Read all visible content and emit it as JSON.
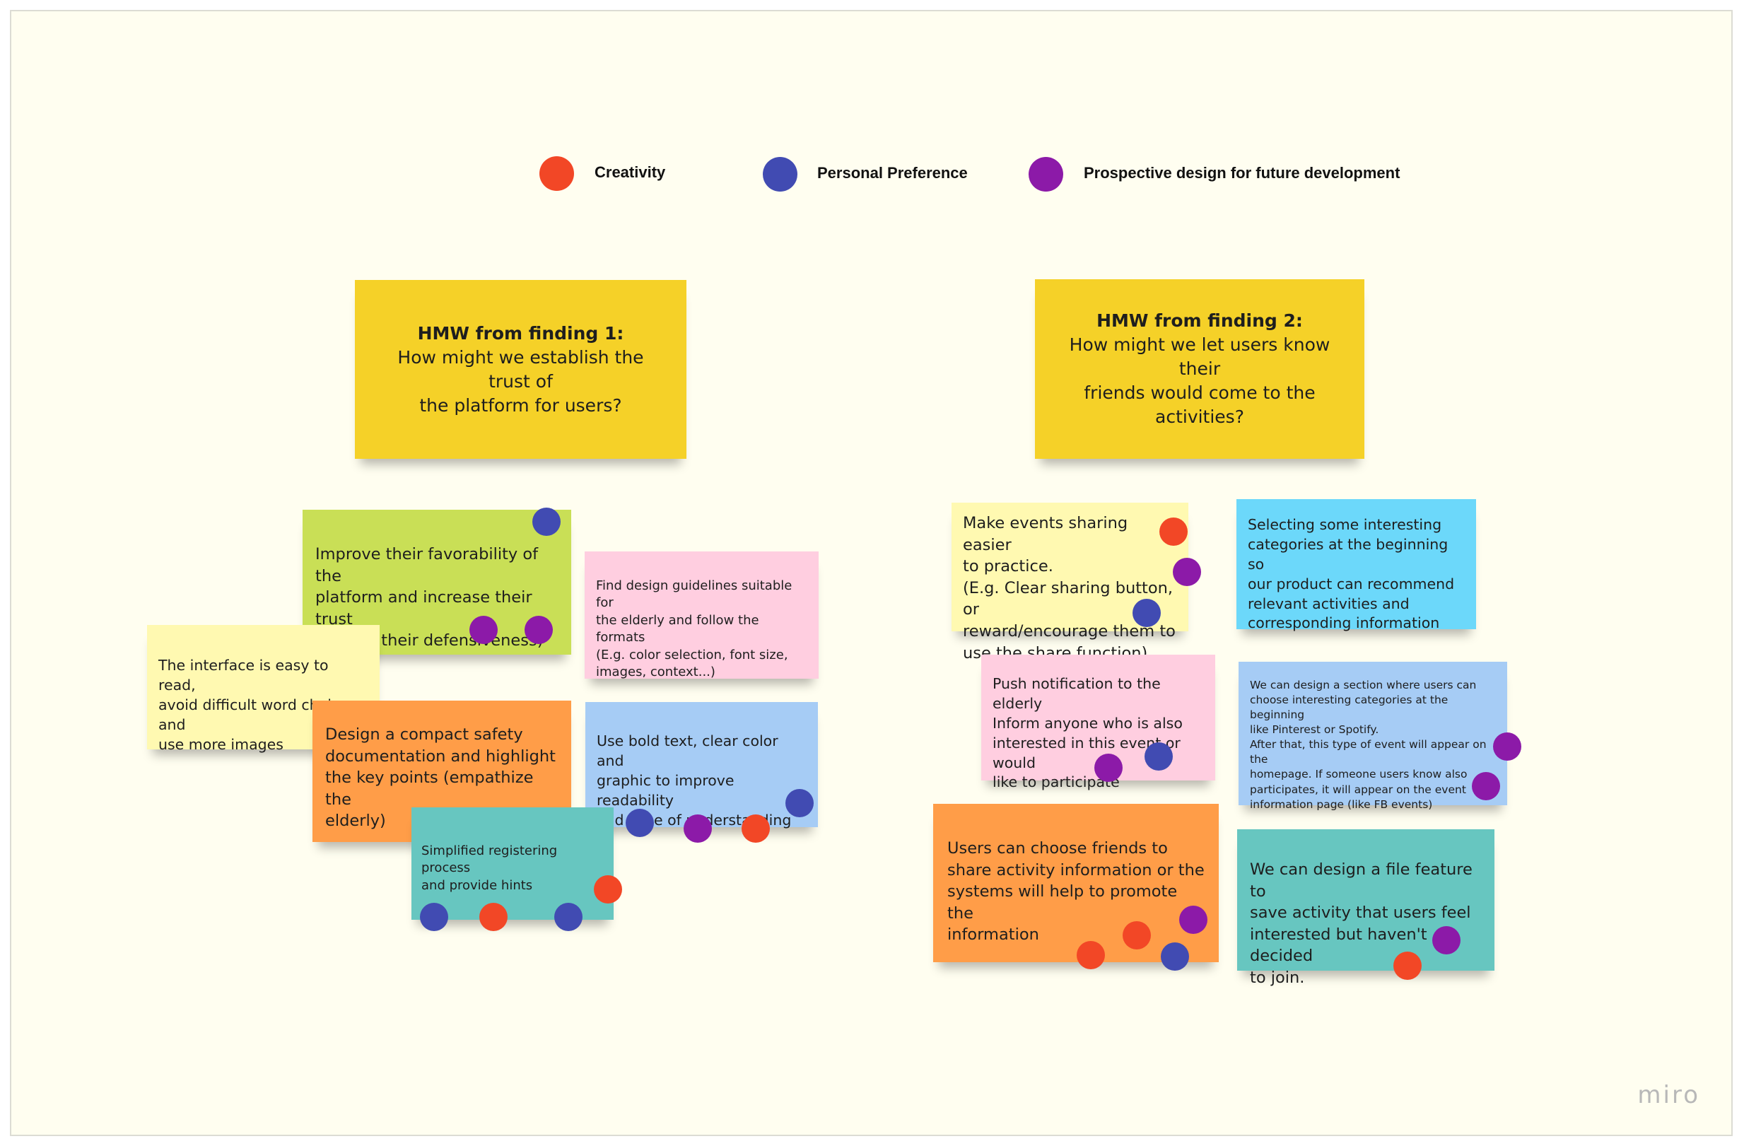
{
  "legend": [
    {
      "label": "Creativity",
      "color": "#f24726"
    },
    {
      "label": "Personal Preference",
      "color": "#414bb2"
    },
    {
      "label": "Prospective design for future development",
      "color": "#8c1aa8"
    }
  ],
  "hmw1": {
    "heading": "HMW from finding 1:",
    "question": "How might we establish the trust of\nthe platform for users?",
    "color": "#f5d128"
  },
  "hmw2": {
    "heading": "HMW from finding 2:",
    "question": "How might we let users know their\nfriends would come to the activities?",
    "color": "#f5d128"
  },
  "notes": {
    "favorability": "Improve their favorability of the\nplatform and increase their trust\n(reduce their defensiveness)",
    "guidelines": "Find design guidelines suitable for\nthe elderly and follow the formats\n(E.g. color selection, font size,\nimages, context...)",
    "easy_read": "The interface is easy to read,\navoid difficult word choice, and\nuse more images",
    "safety_doc": "Design a compact safety\ndocumentation and  highlight\nthe key points (empathize the\nelderly)",
    "bold_text": "Use bold text, clear color and\ngraphic to improve  readability\nand ease of understanding",
    "registering": "Simplified registering process\nand provide hints",
    "sharing": "Make events  sharing easier\nto practice.\n(E.g. Clear sharing button, or\nreward/encourage them to\nuse the share function)",
    "categories": "Selecting some interesting\ncategories at the beginning so\nour product can recommend\nrelevant activities and\ncorresponding information",
    "push": "Push notification to the elderly\nInform anyone who is also\ninterested in this event or would\nlike to participate",
    "section": "We can design a section where users can\nchoose interesting categories at the beginning\nlike Pinterest or Spotify.\nAfter that, this type of event will appear on the\nhomepage. If someone users know also\nparticipates, it will appear on the event\ninformation page (like FB events)",
    "choose_friends": "Users can choose  friends to\nshare activity information or the\nsystems will help to promote the\ninformation",
    "file_feature": "We can design a file feature to\nsave activity that users feel\ninterested but haven't decided\nto join."
  },
  "note_colors": {
    "favorability": "#c9df56",
    "guidelines": "#ffcee0",
    "easy_read": "#fff9b1",
    "safety_doc": "#ff9d48",
    "bold_text": "#a6ccf5",
    "registering": "#67c6c0",
    "sharing": "#fff9b1",
    "categories": "#6cd8fa",
    "push": "#ffcee0",
    "section": "#a6ccf5",
    "choose_friends": "#ff9d48",
    "file_feature": "#67c6c0"
  },
  "brand": "miro"
}
